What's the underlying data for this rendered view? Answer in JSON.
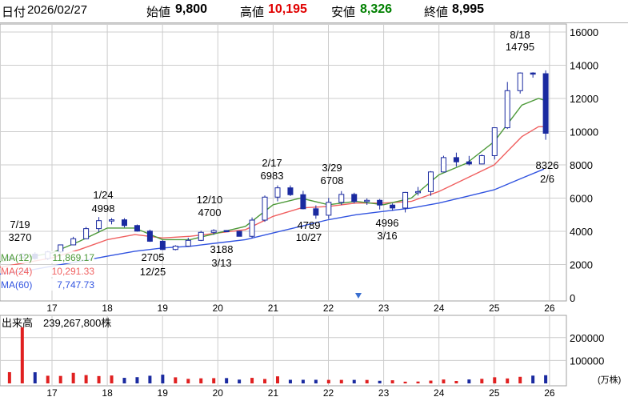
{
  "header": {
    "date_label": "日付",
    "date": "2026/02/27",
    "open_label": "始値",
    "open": "9,800",
    "high_label": "高値",
    "high": "10,195",
    "low_label": "安値",
    "low": "8,326",
    "close_label": "終値",
    "close": "8,995",
    "colors": {
      "high": "#e00000",
      "low": "#008000"
    }
  },
  "colors": {
    "candle_up": "#ffffff",
    "candle_down": "#1a2aa0",
    "ma12": "#4e9a3a",
    "ma24": "#f06060",
    "ma60": "#3355e0",
    "vol_up": "#e02020",
    "vol_down": "#1a2aa0",
    "grid": "#cccccc"
  },
  "volume_panel": {
    "title": "出来高",
    "total": "239,267,800株",
    "unit": "(万株)"
  },
  "chart_data": {
    "type": "candlestick",
    "x_axis_labels": [
      "17",
      "18",
      "19",
      "20",
      "21",
      "22",
      "23",
      "24",
      "25",
      "26"
    ],
    "price_axis": {
      "ticks": [
        0,
        2000,
        4000,
        6000,
        8000,
        10000,
        12000,
        14000,
        16000
      ],
      "range": [
        0,
        16000
      ]
    },
    "volume_axis": {
      "ticks": [
        100000,
        200000
      ],
      "range": [
        0,
        250000
      ]
    },
    "moving_averages": [
      {
        "label": "MA(12)",
        "value": "11,869.17"
      },
      {
        "label": "MA(24)",
        "value": "10,291.33"
      },
      {
        "label": "MA(60)",
        "value": "7,747.73"
      }
    ],
    "annotations": [
      {
        "date": "7/19",
        "value": "3270"
      },
      {
        "date": "1/24",
        "value": "4998"
      },
      {
        "date": "12/25",
        "value": "2705"
      },
      {
        "date": "12/10",
        "value": "4700"
      },
      {
        "date": "3/13",
        "value": "3188"
      },
      {
        "date": "2/17",
        "value": "6983"
      },
      {
        "date": "10/27",
        "value": "4789"
      },
      {
        "date": "3/29",
        "value": "6708"
      },
      {
        "date": "3/16",
        "value": "4996"
      },
      {
        "date": "8/18",
        "value": "14795"
      },
      {
        "date": "2/6",
        "value": "8326"
      }
    ],
    "close_path": [
      [
        16.0,
        2300
      ],
      [
        16.3,
        2500
      ],
      [
        16.5,
        2700
      ],
      [
        16.7,
        2400
      ],
      [
        17.0,
        2900
      ],
      [
        17.3,
        3400
      ],
      [
        17.6,
        4100
      ],
      [
        17.8,
        4700
      ],
      [
        18.0,
        4900
      ],
      [
        18.2,
        4600
      ],
      [
        18.5,
        4100
      ],
      [
        18.7,
        3500
      ],
      [
        18.9,
        3000
      ],
      [
        19.1,
        2800
      ],
      [
        19.3,
        3200
      ],
      [
        19.6,
        3800
      ],
      [
        19.9,
        4000
      ],
      [
        20.1,
        4200
      ],
      [
        20.3,
        3400
      ],
      [
        20.5,
        4100
      ],
      [
        20.7,
        5100
      ],
      [
        20.9,
        6200
      ],
      [
        21.0,
        6700
      ],
      [
        21.2,
        6500
      ],
      [
        21.4,
        6000
      ],
      [
        21.6,
        5200
      ],
      [
        21.8,
        5000
      ],
      [
        22.0,
        5600
      ],
      [
        22.2,
        6200
      ],
      [
        22.4,
        5900
      ],
      [
        22.6,
        6000
      ],
      [
        22.8,
        5900
      ],
      [
        23.0,
        5300
      ],
      [
        23.2,
        5600
      ],
      [
        23.4,
        6400
      ],
      [
        23.6,
        6300
      ],
      [
        23.8,
        7300
      ],
      [
        24.0,
        8400
      ],
      [
        24.2,
        8100
      ],
      [
        24.4,
        8500
      ],
      [
        24.6,
        7800
      ],
      [
        24.8,
        8500
      ],
      [
        25.0,
        10400
      ],
      [
        25.2,
        12000
      ],
      [
        25.4,
        13400
      ],
      [
        25.5,
        13600
      ],
      [
        25.6,
        13300
      ],
      [
        25.7,
        13500
      ],
      [
        25.8,
        13300
      ],
      [
        25.9,
        10500
      ],
      [
        26.0,
        9000
      ]
    ],
    "ma12_path": [
      [
        16.0,
        2150
      ],
      [
        16.5,
        2400
      ],
      [
        17.0,
        2700
      ],
      [
        17.5,
        3400
      ],
      [
        18.0,
        4200
      ],
      [
        18.5,
        4200
      ],
      [
        19.0,
        3500
      ],
      [
        19.5,
        3500
      ],
      [
        20.0,
        3900
      ],
      [
        20.5,
        4300
      ],
      [
        21.0,
        5600
      ],
      [
        21.5,
        6000
      ],
      [
        22.0,
        5600
      ],
      [
        22.5,
        5800
      ],
      [
        23.0,
        5600
      ],
      [
        23.5,
        6000
      ],
      [
        24.0,
        7400
      ],
      [
        24.5,
        8100
      ],
      [
        25.0,
        9400
      ],
      [
        25.5,
        11600
      ],
      [
        25.8,
        12000
      ],
      [
        25.9,
        11900
      ]
    ],
    "ma24_path": [
      [
        16.0,
        1800
      ],
      [
        16.5,
        2100
      ],
      [
        17.0,
        2400
      ],
      [
        17.5,
        2900
      ],
      [
        18.0,
        3500
      ],
      [
        18.5,
        3800
      ],
      [
        19.0,
        3600
      ],
      [
        19.5,
        3700
      ],
      [
        20.0,
        3900
      ],
      [
        20.5,
        4100
      ],
      [
        21.0,
        4900
      ],
      [
        21.5,
        5400
      ],
      [
        22.0,
        5500
      ],
      [
        22.5,
        5700
      ],
      [
        23.0,
        5700
      ],
      [
        23.5,
        5800
      ],
      [
        24.0,
        6400
      ],
      [
        24.5,
        7200
      ],
      [
        25.0,
        8000
      ],
      [
        25.5,
        9700
      ],
      [
        25.8,
        10300
      ],
      [
        25.9,
        10300
      ]
    ],
    "ma60_path": [
      [
        16.0,
        1400
      ],
      [
        16.5,
        1600
      ],
      [
        17.0,
        1900
      ],
      [
        17.5,
        2200
      ],
      [
        18.0,
        2500
      ],
      [
        18.5,
        2800
      ],
      [
        19.0,
        3000
      ],
      [
        19.5,
        3100
      ],
      [
        20.0,
        3300
      ],
      [
        20.5,
        3500
      ],
      [
        21.0,
        3900
      ],
      [
        21.5,
        4300
      ],
      [
        22.0,
        4700
      ],
      [
        22.5,
        5000
      ],
      [
        23.0,
        5200
      ],
      [
        23.5,
        5400
      ],
      [
        24.0,
        5700
      ],
      [
        24.5,
        6100
      ],
      [
        25.0,
        6500
      ],
      [
        25.5,
        7200
      ],
      [
        25.9,
        7750
      ]
    ],
    "volume_profile": [
      [
        16.0,
        12000
      ],
      [
        16.2,
        22000
      ],
      [
        16.5,
        245000
      ],
      [
        16.6,
        60000
      ],
      [
        16.8,
        50000
      ],
      [
        17.0,
        40000
      ],
      [
        17.3,
        38000
      ],
      [
        17.6,
        45000
      ],
      [
        18.0,
        30000
      ],
      [
        18.5,
        25000
      ],
      [
        19.0,
        30000
      ],
      [
        19.5,
        22000
      ],
      [
        20.0,
        24000
      ],
      [
        20.5,
        18000
      ],
      [
        21.0,
        28000
      ],
      [
        21.5,
        18000
      ],
      [
        22.0,
        15000
      ],
      [
        22.5,
        14000
      ],
      [
        23.0,
        12000
      ],
      [
        23.5,
        10000
      ],
      [
        24.0,
        14000
      ],
      [
        24.5,
        14000
      ],
      [
        25.0,
        22000
      ],
      [
        25.5,
        25000
      ],
      [
        26.0,
        35000
      ]
    ]
  }
}
